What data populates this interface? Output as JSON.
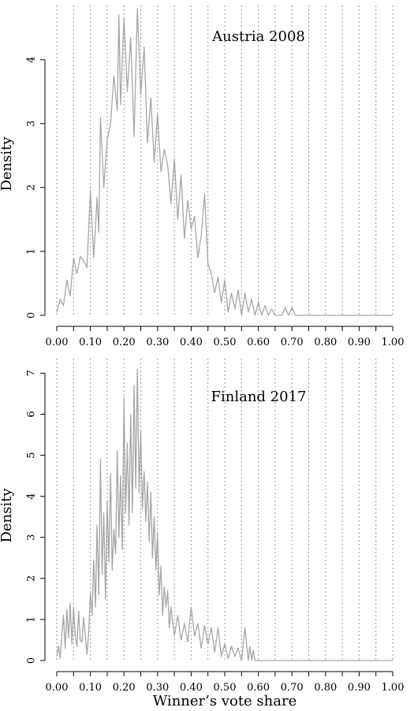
{
  "figure": {
    "xlabel": "Winner’s vote share"
  },
  "chart_data": [
    {
      "type": "line",
      "title": "Austria 2008",
      "xlabel": "",
      "ylabel": "Density",
      "xlim": [
        0,
        1
      ],
      "ylim": [
        0,
        4.75
      ],
      "x_ticks": [
        0.0,
        0.1,
        0.2,
        0.3,
        0.4,
        0.5,
        0.6,
        0.7,
        0.8,
        0.9,
        1.0
      ],
      "x_tick_labels": [
        "0.00",
        "0.10",
        "0.20",
        "0.30",
        "0.40",
        "0.50",
        "0.60",
        "0.70",
        "0.80",
        "0.90",
        "1.00"
      ],
      "x_minor_ticks": [
        0.05,
        0.15,
        0.25,
        0.35,
        0.45,
        0.55,
        0.65,
        0.75,
        0.85,
        0.95
      ],
      "y_ticks": [
        0,
        1,
        2,
        3,
        4
      ],
      "y_tick_labels": [
        "0",
        "1",
        "2",
        "3",
        "4"
      ],
      "grid": "vertical dotted at every 0.05",
      "line_color": "#a6a6a6",
      "series": [
        {
          "x": [
            0.0,
            0.01,
            0.02,
            0.03,
            0.04,
            0.05,
            0.06,
            0.07,
            0.08,
            0.09,
            0.1,
            0.11,
            0.12,
            0.125,
            0.13,
            0.14,
            0.15,
            0.16,
            0.17,
            0.18,
            0.185,
            0.19,
            0.2,
            0.21,
            0.22,
            0.23,
            0.24,
            0.25,
            0.26,
            0.27,
            0.28,
            0.29,
            0.3,
            0.31,
            0.32,
            0.33,
            0.34,
            0.35,
            0.36,
            0.37,
            0.38,
            0.39,
            0.4,
            0.41,
            0.42,
            0.43,
            0.44,
            0.45,
            0.46,
            0.47,
            0.48,
            0.49,
            0.5,
            0.51,
            0.52,
            0.53,
            0.54,
            0.55,
            0.56,
            0.57,
            0.58,
            0.59,
            0.6,
            0.61,
            0.62,
            0.63,
            0.64,
            0.65,
            0.66,
            0.67,
            0.68,
            0.69,
            0.7,
            0.71,
            0.72,
            0.75,
            0.8,
            0.9,
            1.0
          ],
          "y": [
            0.05,
            0.25,
            0.15,
            0.55,
            0.3,
            0.9,
            0.65,
            0.92,
            0.85,
            0.75,
            1.95,
            0.9,
            1.85,
            1.3,
            3.1,
            2.0,
            2.75,
            3.0,
            3.75,
            3.2,
            4.7,
            3.3,
            4.65,
            3.5,
            4.35,
            2.8,
            4.8,
            3.45,
            4.2,
            2.7,
            3.4,
            2.4,
            3.15,
            2.25,
            2.6,
            2.35,
            1.75,
            2.45,
            1.5,
            2.2,
            1.2,
            1.8,
            1.35,
            1.55,
            0.9,
            1.25,
            1.9,
            0.8,
            0.65,
            0.35,
            0.6,
            0.2,
            0.55,
            0.05,
            0.35,
            0.1,
            0.4,
            0.0,
            0.35,
            0.05,
            0.25,
            0.0,
            0.2,
            0.0,
            0.15,
            0.0,
            0.1,
            0.0,
            0.0,
            0.0,
            0.12,
            0.0,
            0.12,
            0.0,
            0.0,
            0.0,
            0.0,
            0.0,
            0.0
          ]
        }
      ]
    },
    {
      "type": "line",
      "title": "Finland 2017",
      "xlabel": "Winner’s vote share",
      "ylabel": "Density",
      "xlim": [
        0,
        1
      ],
      "ylim": [
        0,
        7.2
      ],
      "x_ticks": [
        0.0,
        0.1,
        0.2,
        0.3,
        0.4,
        0.5,
        0.6,
        0.7,
        0.8,
        0.9,
        1.0
      ],
      "x_tick_labels": [
        "0.00",
        "0.10",
        "0.20",
        "0.30",
        "0.40",
        "0.50",
        "0.60",
        "0.70",
        "0.80",
        "0.90",
        "1.00"
      ],
      "x_minor_ticks": [
        0.05,
        0.15,
        0.25,
        0.35,
        0.45,
        0.55,
        0.65,
        0.75,
        0.85,
        0.95
      ],
      "y_ticks": [
        0,
        1,
        2,
        3,
        4,
        5,
        6,
        7
      ],
      "y_tick_labels": [
        "0",
        "1",
        "2",
        "3",
        "4",
        "5",
        "6",
        "7"
      ],
      "grid": "vertical dotted at every 0.05",
      "line_color": "#a6a6a6",
      "series": [
        {
          "x": [
            0.0,
            0.005,
            0.01,
            0.015,
            0.02,
            0.025,
            0.03,
            0.035,
            0.04,
            0.045,
            0.05,
            0.055,
            0.06,
            0.065,
            0.07,
            0.075,
            0.08,
            0.085,
            0.09,
            0.095,
            0.1,
            0.105,
            0.11,
            0.115,
            0.12,
            0.125,
            0.13,
            0.135,
            0.14,
            0.145,
            0.15,
            0.155,
            0.16,
            0.165,
            0.17,
            0.175,
            0.18,
            0.185,
            0.19,
            0.195,
            0.2,
            0.205,
            0.21,
            0.215,
            0.22,
            0.225,
            0.23,
            0.235,
            0.24,
            0.245,
            0.25,
            0.255,
            0.26,
            0.265,
            0.27,
            0.275,
            0.28,
            0.285,
            0.29,
            0.295,
            0.3,
            0.305,
            0.31,
            0.315,
            0.32,
            0.325,
            0.33,
            0.335,
            0.34,
            0.35,
            0.36,
            0.37,
            0.38,
            0.39,
            0.4,
            0.41,
            0.42,
            0.43,
            0.44,
            0.45,
            0.46,
            0.47,
            0.48,
            0.49,
            0.5,
            0.51,
            0.52,
            0.53,
            0.54,
            0.55,
            0.56,
            0.57,
            0.575,
            0.58,
            0.585,
            0.59,
            0.6,
            0.7,
            0.8,
            0.9,
            1.0
          ],
          "y": [
            0.1,
            0.35,
            0.05,
            0.6,
            1.1,
            0.3,
            1.25,
            0.55,
            1.4,
            0.4,
            1.3,
            0.6,
            0.35,
            1.2,
            0.5,
            0.45,
            1.05,
            0.6,
            0.15,
            0.7,
            1.65,
            1.1,
            2.45,
            1.3,
            3.3,
            1.6,
            4.9,
            2.1,
            3.6,
            1.5,
            3.9,
            2.4,
            4.55,
            2.2,
            3.2,
            2.6,
            5.1,
            3.0,
            4.5,
            2.7,
            6.4,
            3.6,
            5.3,
            3.3,
            6.0,
            3.6,
            6.7,
            4.2,
            7.1,
            4.1,
            5.6,
            3.7,
            4.6,
            3.4,
            4.35,
            2.9,
            4.1,
            2.5,
            3.5,
            2.2,
            3.1,
            1.6,
            2.3,
            1.1,
            1.8,
            1.3,
            1.7,
            0.8,
            1.3,
            0.6,
            1.1,
            0.5,
            0.9,
            0.45,
            1.3,
            0.6,
            0.9,
            0.3,
            0.85,
            0.4,
            0.8,
            0.2,
            0.8,
            0.1,
            0.4,
            0.05,
            0.35,
            0.1,
            0.3,
            0.0,
            0.8,
            0.0,
            0.35,
            0.0,
            0.25,
            0.0,
            0.0,
            0.0,
            0.0,
            0.0,
            0.0
          ]
        }
      ]
    }
  ]
}
